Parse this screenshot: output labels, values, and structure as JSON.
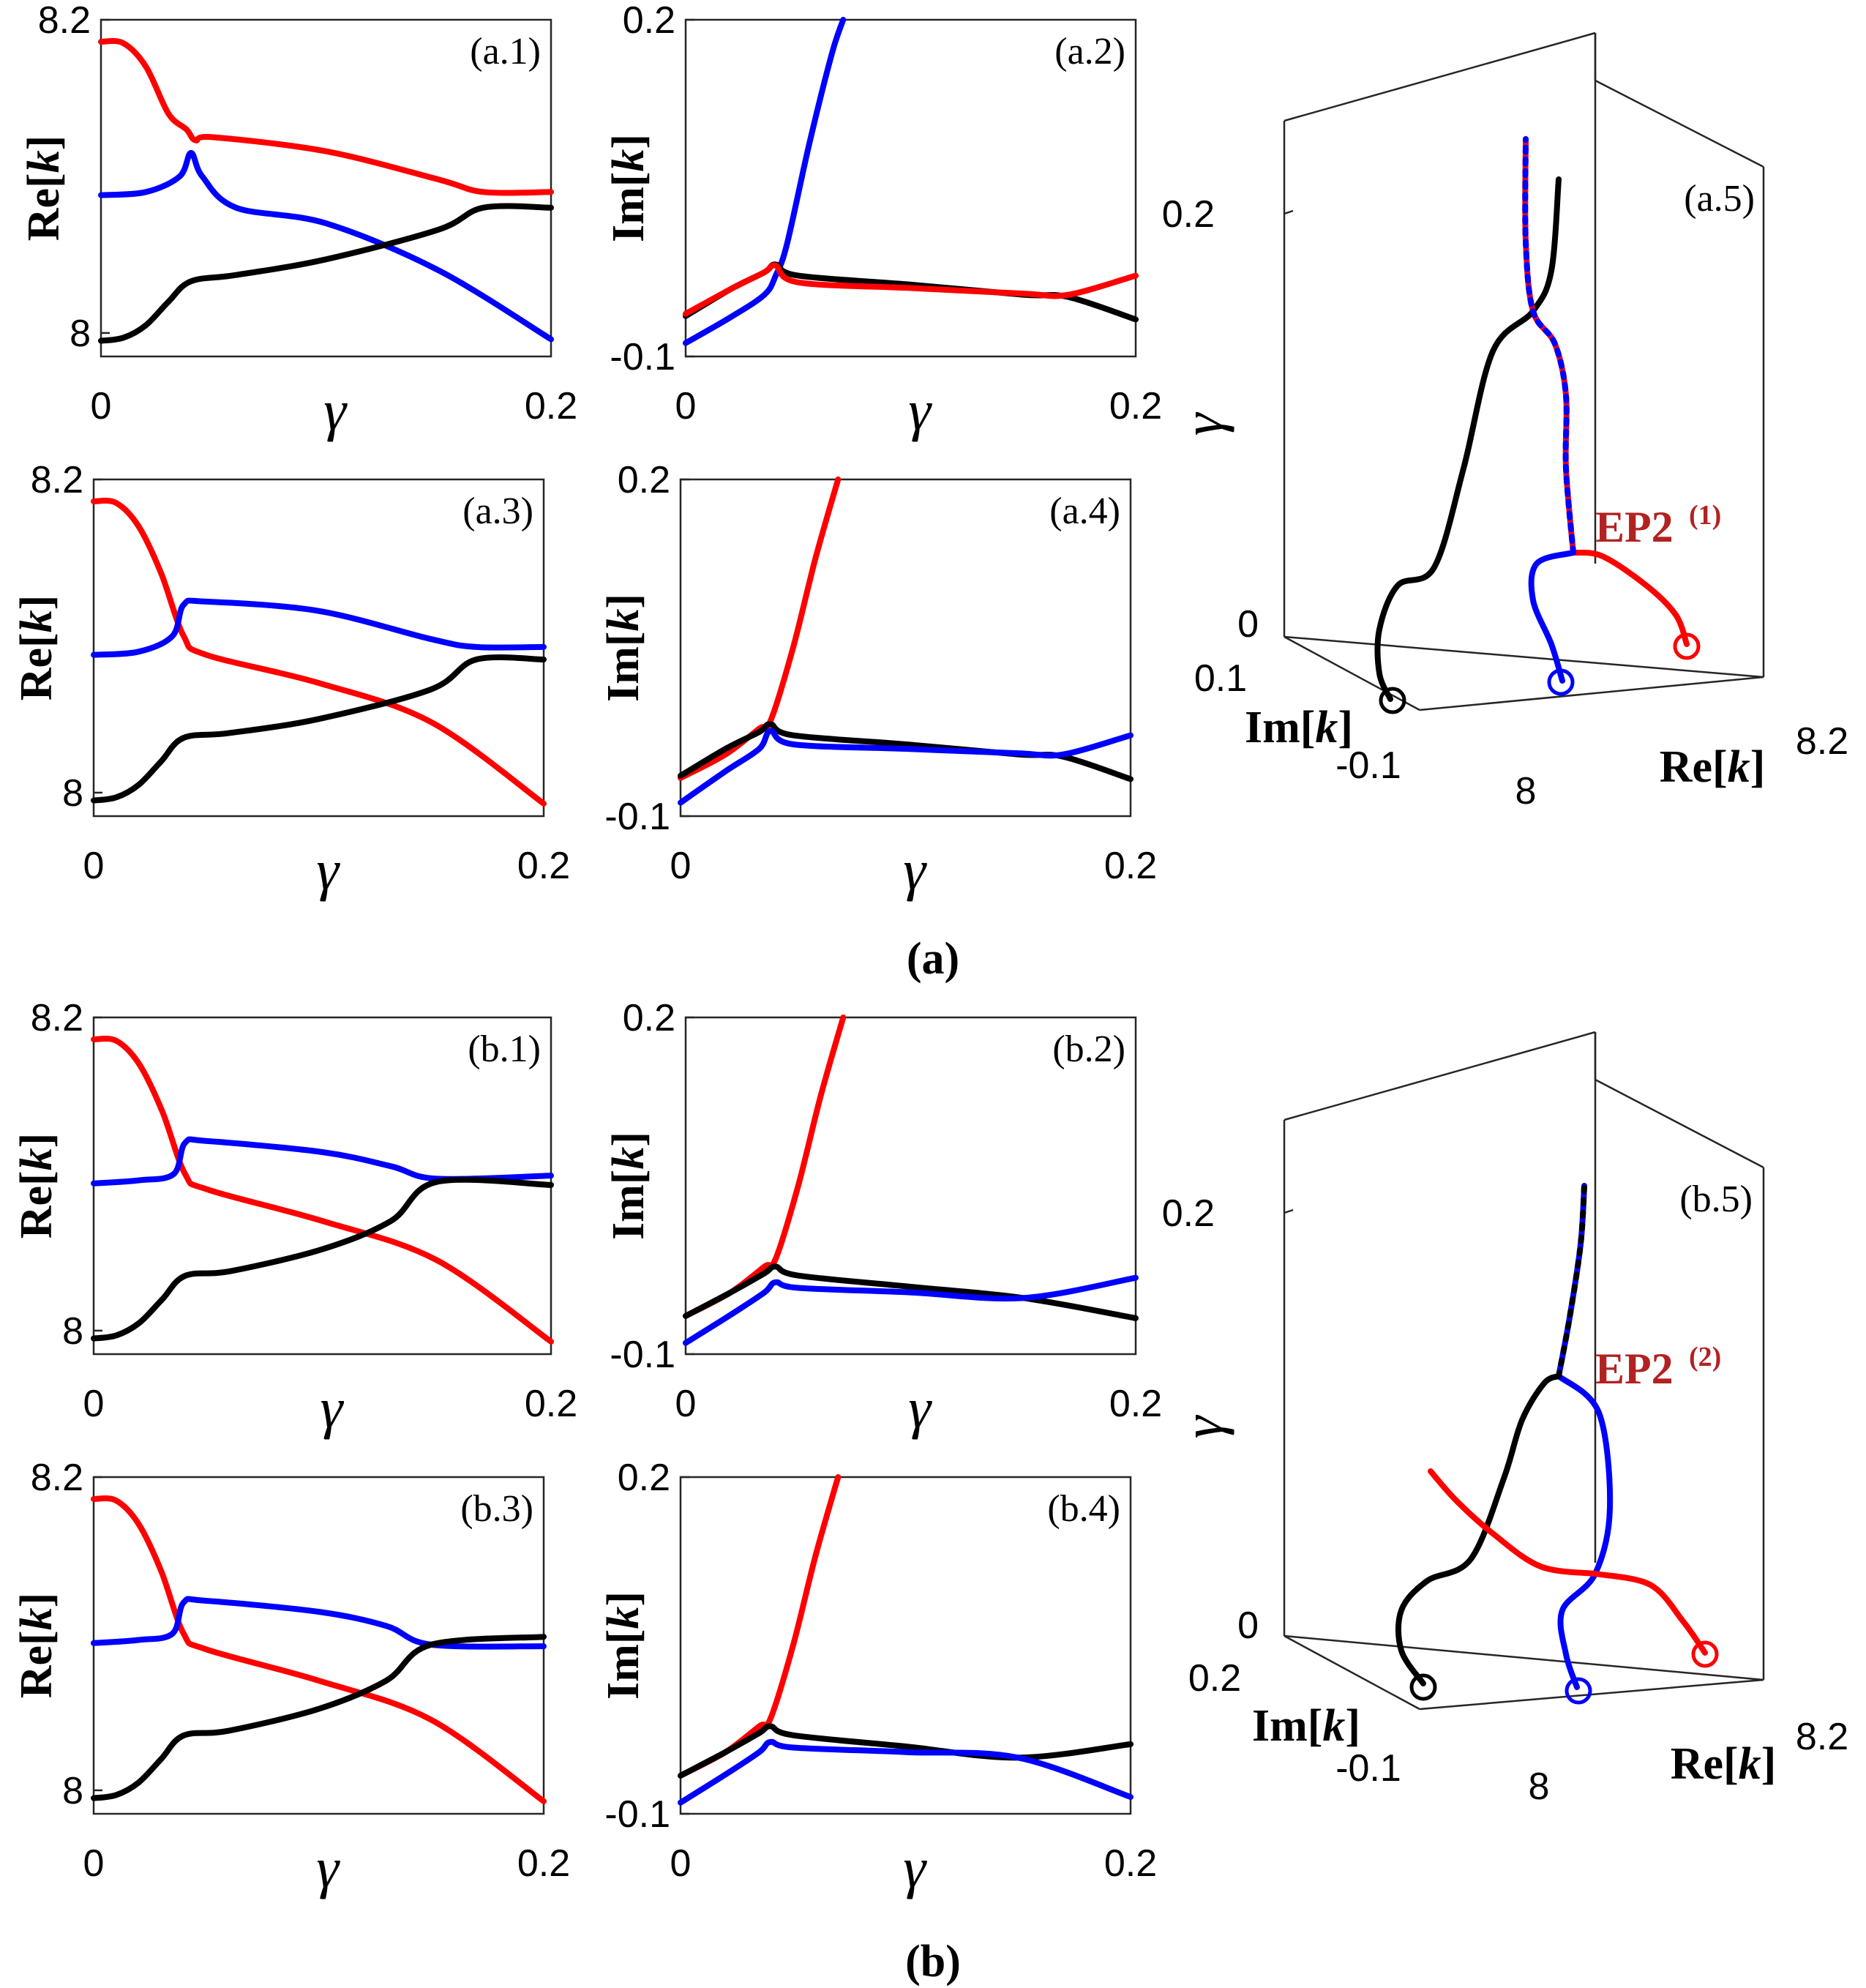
{
  "figure_labels": {
    "a": "(a)",
    "b": "(b)"
  },
  "colors": {
    "black": "#000000",
    "blue": "#0000ff",
    "red": "#ff0000",
    "ep": "#b22222"
  },
  "chart_data": [
    {
      "id": "a1",
      "type": "line",
      "panel_label": "(a.1)",
      "xlabel": "γ",
      "ylabel": "Re[k]",
      "xlim": [
        0,
        0.2
      ],
      "ylim": [
        7.985,
        8.2
      ],
      "xticks": [
        "0",
        "0.2"
      ],
      "yticks": [
        "8.2",
        "8"
      ],
      "series": [
        {
          "color": "red",
          "x": [
            0,
            0.01,
            0.02,
            0.03,
            0.038,
            0.042,
            0.05,
            0.1,
            0.15,
            0.17,
            0.2
          ],
          "y": [
            8.186,
            8.185,
            8.17,
            8.14,
            8.13,
            8.123,
            8.125,
            8.116,
            8.098,
            8.09,
            8.09
          ]
        },
        {
          "color": "blue",
          "x": [
            0,
            0.02,
            0.035,
            0.04,
            0.045,
            0.06,
            0.1,
            0.15,
            0.2
          ],
          "y": [
            8.088,
            8.09,
            8.1,
            8.115,
            8.1,
            8.08,
            8.07,
            8.04,
            7.996
          ]
        },
        {
          "color": "black",
          "x": [
            0,
            0.01,
            0.02,
            0.03,
            0.04,
            0.06,
            0.1,
            0.15,
            0.17,
            0.2
          ],
          "y": [
            7.995,
            7.997,
            8.005,
            8.02,
            8.033,
            8.037,
            8.047,
            8.066,
            8.08,
            8.08
          ]
        }
      ]
    },
    {
      "id": "a2",
      "type": "line",
      "panel_label": "(a.2)",
      "xlabel": "γ",
      "ylabel": "Im[k]",
      "xlim": [
        0,
        0.2
      ],
      "ylim": [
        -0.1,
        0.2
      ],
      "xticks": [
        "0",
        "0.2"
      ],
      "yticks": [
        "0.2",
        "-0.1"
      ],
      "series": [
        {
          "color": "blue",
          "x": [
            0,
            0.02,
            0.035,
            0.04,
            0.045,
            0.055,
            0.065,
            0.07
          ],
          "y": [
            -0.088,
            -0.065,
            -0.045,
            -0.028,
            0.0,
            0.09,
            0.17,
            0.2
          ]
        },
        {
          "color": "black",
          "x": [
            0,
            0.02,
            0.035,
            0.04,
            0.05,
            0.1,
            0.15,
            0.17,
            0.2
          ],
          "y": [
            -0.064,
            -0.04,
            -0.025,
            -0.018,
            -0.028,
            -0.036,
            -0.045,
            -0.047,
            -0.067
          ]
        },
        {
          "color": "red",
          "x": [
            0,
            0.02,
            0.035,
            0.04,
            0.05,
            0.1,
            0.15,
            0.17,
            0.2
          ],
          "y": [
            -0.062,
            -0.04,
            -0.025,
            -0.019,
            -0.034,
            -0.039,
            -0.044,
            -0.045,
            -0.028
          ]
        }
      ]
    },
    {
      "id": "a3",
      "type": "line",
      "panel_label": "(a.3)",
      "xlabel": "γ",
      "ylabel": "Re[k]",
      "xlim": [
        0,
        0.2
      ],
      "ylim": [
        7.985,
        8.2
      ],
      "xticks": [
        "0",
        "0.2"
      ],
      "yticks": [
        "8.2",
        "8"
      ],
      "series": [
        {
          "color": "red",
          "x": [
            0,
            0.01,
            0.02,
            0.03,
            0.04,
            0.05,
            0.1,
            0.15,
            0.2
          ],
          "y": [
            8.186,
            8.185,
            8.17,
            8.14,
            8.1,
            8.088,
            8.07,
            8.045,
            7.993
          ]
        },
        {
          "color": "blue",
          "x": [
            0,
            0.02,
            0.035,
            0.04,
            0.05,
            0.1,
            0.15,
            0.17,
            0.2
          ],
          "y": [
            8.088,
            8.09,
            8.1,
            8.12,
            8.122,
            8.116,
            8.098,
            8.093,
            8.093
          ]
        },
        {
          "color": "black",
          "x": [
            0,
            0.01,
            0.02,
            0.03,
            0.04,
            0.06,
            0.1,
            0.15,
            0.17,
            0.2
          ],
          "y": [
            7.995,
            7.997,
            8.005,
            8.02,
            8.035,
            8.038,
            8.047,
            8.066,
            8.085,
            8.085
          ]
        }
      ]
    },
    {
      "id": "a4",
      "type": "line",
      "panel_label": "(a.4)",
      "xlabel": "γ",
      "ylabel": "Im[k]",
      "xlim": [
        0,
        0.2
      ],
      "ylim": [
        -0.1,
        0.2
      ],
      "xticks": [
        "0",
        "0.2"
      ],
      "yticks": [
        "0.2",
        "-0.1"
      ],
      "series": [
        {
          "color": "red",
          "x": [
            0,
            0.02,
            0.035,
            0.04,
            0.05,
            0.06,
            0.07
          ],
          "y": [
            -0.066,
            -0.045,
            -0.022,
            -0.015,
            0.05,
            0.13,
            0.2
          ]
        },
        {
          "color": "black",
          "x": [
            0,
            0.02,
            0.035,
            0.04,
            0.05,
            0.1,
            0.15,
            0.17,
            0.2
          ],
          "y": [
            -0.064,
            -0.04,
            -0.025,
            -0.018,
            -0.028,
            -0.036,
            -0.045,
            -0.047,
            -0.067
          ]
        },
        {
          "color": "blue",
          "x": [
            0,
            0.02,
            0.035,
            0.04,
            0.05,
            0.1,
            0.15,
            0.17,
            0.2
          ],
          "y": [
            -0.088,
            -0.06,
            -0.04,
            -0.024,
            -0.036,
            -0.04,
            -0.044,
            -0.045,
            -0.028
          ]
        }
      ]
    },
    {
      "id": "b1",
      "type": "line",
      "panel_label": "(b.1)",
      "xlabel": "γ",
      "ylabel": "Re[k]",
      "xlim": [
        0,
        0.2
      ],
      "ylim": [
        7.985,
        8.2
      ],
      "xticks": [
        "0",
        "0.2"
      ],
      "yticks": [
        "8.2",
        "8"
      ],
      "series": [
        {
          "color": "red",
          "x": [
            0,
            0.01,
            0.02,
            0.03,
            0.04,
            0.05,
            0.1,
            0.15,
            0.2
          ],
          "y": [
            8.186,
            8.185,
            8.17,
            8.14,
            8.1,
            8.09,
            8.07,
            8.045,
            7.993
          ]
        },
        {
          "color": "blue",
          "x": [
            0,
            0.02,
            0.035,
            0.04,
            0.05,
            0.1,
            0.13,
            0.15,
            0.2
          ],
          "y": [
            8.094,
            8.096,
            8.1,
            8.12,
            8.121,
            8.114,
            8.105,
            8.097,
            8.099
          ]
        },
        {
          "color": "black",
          "x": [
            0,
            0.01,
            0.02,
            0.03,
            0.04,
            0.06,
            0.1,
            0.13,
            0.15,
            0.2
          ],
          "y": [
            7.995,
            7.997,
            8.005,
            8.02,
            8.035,
            8.038,
            8.052,
            8.07,
            8.095,
            8.093
          ]
        }
      ]
    },
    {
      "id": "b2",
      "type": "line",
      "panel_label": "(b.2)",
      "xlabel": "γ",
      "ylabel": "Im[k]",
      "xlim": [
        0,
        0.2
      ],
      "ylim": [
        -0.1,
        0.2
      ],
      "xticks": [
        "0",
        "0.2"
      ],
      "yticks": [
        "0.2",
        "-0.1"
      ],
      "series": [
        {
          "color": "red",
          "x": [
            0,
            0.02,
            0.035,
            0.04,
            0.05,
            0.06,
            0.07
          ],
          "y": [
            -0.066,
            -0.045,
            -0.022,
            -0.015,
            0.05,
            0.13,
            0.2
          ]
        },
        {
          "color": "black",
          "x": [
            0,
            0.02,
            0.035,
            0.04,
            0.05,
            0.1,
            0.15,
            0.2
          ],
          "y": [
            -0.066,
            -0.045,
            -0.028,
            -0.022,
            -0.03,
            -0.04,
            -0.05,
            -0.068
          ]
        },
        {
          "color": "blue",
          "x": [
            0,
            0.02,
            0.035,
            0.04,
            0.05,
            0.1,
            0.15,
            0.2
          ],
          "y": [
            -0.09,
            -0.065,
            -0.045,
            -0.036,
            -0.041,
            -0.045,
            -0.05,
            -0.032
          ]
        }
      ]
    },
    {
      "id": "b3",
      "type": "line",
      "panel_label": "(b.3)",
      "xlabel": "γ",
      "ylabel": "Re[k]",
      "xlim": [
        0,
        0.2
      ],
      "ylim": [
        7.985,
        8.2
      ],
      "xticks": [
        "0",
        "0.2"
      ],
      "yticks": [
        "8.2",
        "8"
      ],
      "series": [
        {
          "color": "red",
          "x": [
            0,
            0.01,
            0.02,
            0.03,
            0.04,
            0.05,
            0.1,
            0.15,
            0.2
          ],
          "y": [
            8.186,
            8.185,
            8.17,
            8.14,
            8.1,
            8.09,
            8.07,
            8.045,
            7.993
          ]
        },
        {
          "color": "blue",
          "x": [
            0,
            0.02,
            0.035,
            0.04,
            0.05,
            0.1,
            0.13,
            0.15,
            0.2
          ],
          "y": [
            8.094,
            8.096,
            8.1,
            8.12,
            8.121,
            8.114,
            8.105,
            8.093,
            8.092
          ]
        },
        {
          "color": "black",
          "x": [
            0,
            0.01,
            0.02,
            0.03,
            0.04,
            0.06,
            0.1,
            0.13,
            0.15,
            0.2
          ],
          "y": [
            7.995,
            7.997,
            8.005,
            8.02,
            8.035,
            8.038,
            8.052,
            8.07,
            8.093,
            8.098
          ]
        }
      ]
    },
    {
      "id": "b4",
      "type": "line",
      "panel_label": "(b.4)",
      "xlabel": "γ",
      "ylabel": "Im[k]",
      "xlim": [
        0,
        0.2
      ],
      "ylim": [
        -0.1,
        0.2
      ],
      "xticks": [
        "0",
        "0.2"
      ],
      "yticks": [
        "0.2",
        "-0.1"
      ],
      "series": [
        {
          "color": "red",
          "x": [
            0,
            0.02,
            0.035,
            0.04,
            0.05,
            0.06,
            0.07
          ],
          "y": [
            -0.066,
            -0.045,
            -0.022,
            -0.015,
            0.05,
            0.13,
            0.2
          ]
        },
        {
          "color": "black",
          "x": [
            0,
            0.02,
            0.035,
            0.04,
            0.05,
            0.1,
            0.15,
            0.2
          ],
          "y": [
            -0.066,
            -0.045,
            -0.028,
            -0.022,
            -0.03,
            -0.04,
            -0.05,
            -0.038
          ]
        },
        {
          "color": "blue",
          "x": [
            0,
            0.02,
            0.035,
            0.04,
            0.05,
            0.1,
            0.15,
            0.2
          ],
          "y": [
            -0.09,
            -0.065,
            -0.045,
            -0.036,
            -0.041,
            -0.045,
            -0.05,
            -0.085
          ]
        }
      ]
    },
    {
      "id": "a5",
      "type": "line3d",
      "panel_label": "(a.5)",
      "xlabel": "Re[k]",
      "ylabel": "Im[k]",
      "zlabel": "γ",
      "xlim": [
        8,
        8.2
      ],
      "ylim": [
        -0.1,
        0.1
      ],
      "zlim": [
        0,
        0.2
      ],
      "xticks": [
        "8",
        "8.2"
      ],
      "yticks": [
        "0.1",
        "-0.1"
      ],
      "zticks": [
        "0.2",
        "0"
      ],
      "ep_label": "EP2",
      "ep_superscript": "(1)",
      "series": [
        {
          "color": "black",
          "start_marker": true
        },
        {
          "color": "blue",
          "start_marker": true
        },
        {
          "color": "red",
          "start_marker": true
        }
      ]
    },
    {
      "id": "b5",
      "type": "line3d",
      "panel_label": "(b.5)",
      "xlabel": "Re[k]",
      "ylabel": "Im[k]",
      "zlabel": "γ",
      "xlim": [
        8,
        8.2
      ],
      "ylim": [
        -0.1,
        0.2
      ],
      "zlim": [
        0,
        0.2
      ],
      "xticks": [
        "8",
        "8.2"
      ],
      "yticks": [
        "0.2",
        "-0.1"
      ],
      "zticks": [
        "0.2",
        "0"
      ],
      "ep_label": "EP2",
      "ep_superscript": "(2)",
      "series": [
        {
          "color": "black",
          "start_marker": true
        },
        {
          "color": "blue",
          "start_marker": true
        },
        {
          "color": "red",
          "start_marker": true
        }
      ]
    }
  ]
}
